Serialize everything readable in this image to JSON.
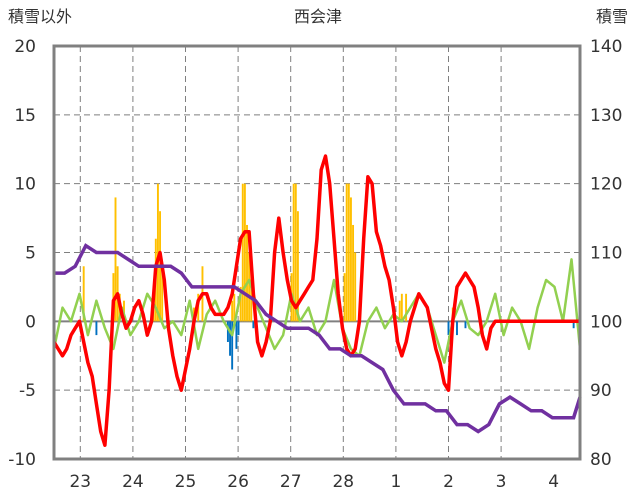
{
  "chart_data": {
    "type": "line",
    "title": "西会津",
    "y_left_label": "積雪以外",
    "y_right_label": "積雪",
    "y_left": {
      "min": -10,
      "max": 20,
      "ticks": [
        "20",
        "15",
        "10",
        "5",
        "0",
        "-5",
        "-10"
      ]
    },
    "y_right": {
      "min": 80,
      "max": 140,
      "ticks": [
        "140",
        "130",
        "120",
        "110",
        "100",
        "90",
        "80"
      ]
    },
    "x_labels": [
      "23",
      "24",
      "25",
      "26",
      "27",
      "28",
      "1",
      "2",
      "3",
      "4"
    ],
    "grid": true,
    "colors": {
      "temperature": "#ff0000",
      "snow_depth": "#7030a0",
      "green_series": "#92d050",
      "snowfall_bars": "#ffc000",
      "negative_bars": "#0070c0",
      "frame": "#808080"
    },
    "series": [
      {
        "key": "temperature",
        "axis": "left",
        "x": [
          0,
          2,
          4,
          6,
          8,
          10,
          12,
          14,
          16,
          18,
          20,
          22,
          24,
          26,
          28,
          30,
          32,
          34,
          36,
          38,
          40,
          42,
          44,
          46,
          48,
          50,
          52,
          54,
          56,
          58,
          60,
          62,
          64,
          66,
          68,
          70,
          72,
          74,
          76,
          78,
          80,
          82,
          84,
          86,
          88,
          90,
          92,
          94,
          96,
          98,
          100,
          102,
          104,
          106,
          108,
          110,
          112,
          114,
          116,
          118,
          120,
          122,
          124,
          126,
          128,
          130,
          132,
          134,
          136,
          138,
          140,
          142,
          144,
          146,
          148,
          150,
          152,
          154,
          156,
          158,
          160,
          162,
          164,
          166,
          168,
          170,
          172,
          174,
          176,
          178,
          180,
          182,
          184,
          186,
          188,
          190,
          192,
          194,
          196,
          198,
          200,
          202,
          204,
          206,
          208,
          210,
          212,
          214,
          216,
          218,
          220,
          222,
          224,
          226,
          228,
          230,
          232,
          234,
          236,
          238,
          240,
          242,
          244,
          246,
          248
        ],
        "values": [
          -1.5,
          -2,
          -2.5,
          -2,
          -1,
          -0.5,
          0,
          -1.5,
          -3,
          -4,
          -6,
          -8,
          -9,
          -5,
          1.5,
          2,
          0.5,
          -0.5,
          0,
          1,
          1.5,
          0.5,
          -1,
          0,
          4,
          5,
          3,
          -0.5,
          -2.5,
          -4,
          -5,
          -3.5,
          -2,
          0,
          1.5,
          2,
          2,
          1,
          0.5,
          0.5,
          0.5,
          1,
          2,
          4,
          6,
          6.5,
          6.5,
          2,
          -1.5,
          -2.5,
          -1.5,
          0,
          5,
          7.5,
          5,
          3,
          1.5,
          1,
          1.5,
          2,
          2.5,
          3,
          6,
          11,
          12,
          10,
          6,
          2,
          -0.5,
          -2,
          -2.5,
          -2,
          0,
          6,
          10.5,
          10,
          6.5,
          5.5,
          4,
          3,
          1,
          -1.5,
          -2.5,
          -1.5,
          0,
          1,
          2,
          1.5,
          1,
          -0.5,
          -2,
          -3,
          -4.5,
          -5,
          0,
          2.5,
          3,
          3.5,
          3,
          2.5,
          1,
          -1,
          -2,
          -0.5,
          0,
          0,
          0,
          0,
          0,
          0,
          0,
          0,
          0,
          0,
          0,
          0,
          0,
          0,
          0,
          0,
          0,
          0,
          0,
          0,
          0
        ]
      },
      {
        "key": "snow_depth",
        "axis": "right",
        "x": [
          0,
          5,
          10,
          15,
          20,
          25,
          30,
          35,
          40,
          45,
          50,
          55,
          60,
          65,
          70,
          75,
          80,
          85,
          90,
          95,
          100,
          105,
          110,
          115,
          120,
          125,
          130,
          135,
          140,
          145,
          150,
          155,
          160,
          165,
          170,
          175,
          180,
          185,
          190,
          195,
          200,
          205,
          210,
          215,
          220,
          225,
          230,
          235,
          240,
          245,
          248
        ],
        "values": [
          107,
          107,
          108,
          111,
          110,
          110,
          110,
          109,
          108,
          108,
          108,
          108,
          107,
          105,
          105,
          105,
          105,
          105,
          104,
          103,
          101,
          100,
          99,
          99,
          99,
          98,
          96,
          96,
          95,
          95,
          94,
          93,
          90,
          88,
          88,
          88,
          87,
          87,
          85,
          85,
          84,
          85,
          88,
          89,
          88,
          87,
          87,
          86,
          86,
          86,
          89
        ]
      },
      {
        "key": "green_series",
        "axis": "left",
        "x": [
          0,
          4,
          8,
          12,
          16,
          20,
          24,
          28,
          32,
          36,
          40,
          44,
          48,
          52,
          56,
          60,
          64,
          68,
          72,
          76,
          80,
          84,
          88,
          92,
          96,
          100,
          104,
          108,
          112,
          116,
          120,
          124,
          128,
          132,
          136,
          140,
          144,
          148,
          152,
          156,
          160,
          164,
          168,
          172,
          176,
          180,
          184,
          188,
          192,
          196,
          200,
          204,
          208,
          212,
          216,
          220,
          224,
          228,
          232,
          236,
          240,
          244,
          248
        ],
        "values": [
          -2,
          1,
          0,
          2,
          -1,
          1.5,
          -0.5,
          -2,
          1,
          -1,
          0,
          2,
          1,
          -0.5,
          0,
          -1,
          1.5,
          -2,
          0.5,
          1.5,
          0,
          -1,
          2,
          3,
          1,
          -0.5,
          -2,
          -1,
          2,
          0,
          1,
          -1,
          0,
          3,
          -0.5,
          -2,
          -2.5,
          0,
          1,
          -0.5,
          0.5,
          0,
          1,
          2,
          1,
          -1,
          -3,
          0,
          1.5,
          -0.5,
          -1,
          0,
          2,
          -1,
          1,
          0,
          -2,
          1,
          3,
          2.5,
          0,
          4.5,
          -2
        ]
      }
    ]
  }
}
